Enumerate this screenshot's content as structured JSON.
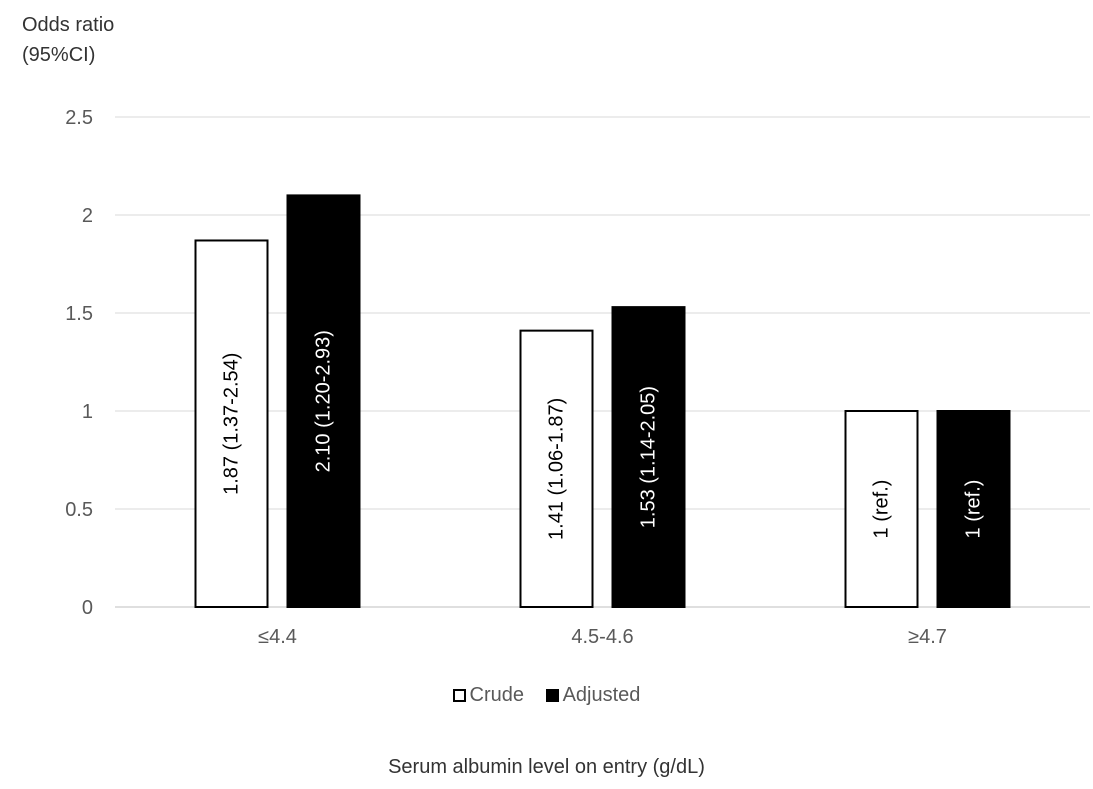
{
  "chart_data": {
    "type": "bar",
    "categories": [
      "≤4.4",
      "4.5-4.6",
      "≥4.7"
    ],
    "series": [
      {
        "name": "Crude",
        "color": "#ffffff",
        "values": [
          1.87,
          1.41,
          1.0
        ],
        "labels": [
          "1.87 (1.37-2.54)",
          "1.41 (1.06-1.87)",
          "1 (ref.)"
        ]
      },
      {
        "name": "Adjusted",
        "color": "#000000",
        "values": [
          2.1,
          1.53,
          1.0
        ],
        "labels": [
          "2.10 (1.20-2.93)",
          "1.53 (1.14-2.05)",
          "1 (ref.)"
        ]
      }
    ],
    "ylabel_line1": "Odds ratio",
    "ylabel_line2": "(95%CI)",
    "xlabel": "Serum albumin level on entry (g/dL)",
    "ylim": [
      0,
      2.5
    ],
    "yticks": [
      "0",
      "0.5",
      "1",
      "1.5",
      "2",
      "2.5"
    ],
    "grid": true,
    "legend_position": "bottom"
  }
}
